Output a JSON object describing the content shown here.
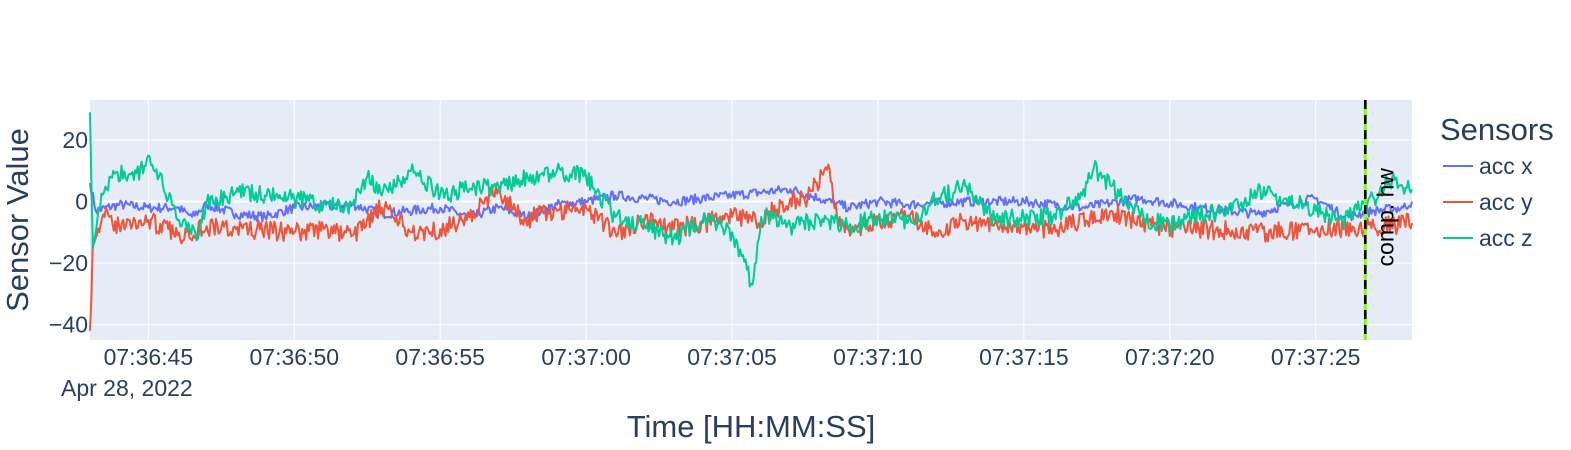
{
  "chart_data": {
    "type": "line",
    "xlabel": "Time [HH:MM:SS]",
    "ylabel": "Sensor Value",
    "x_date_label": "Apr 28, 2022",
    "x_start": "07:36:43",
    "x_end": "07:37:28.3",
    "x_ticks": [
      "07:36:45",
      "07:36:50",
      "07:36:55",
      "07:37:00",
      "07:37:05",
      "07:37:10",
      "07:37:15",
      "07:37:20",
      "07:37:25"
    ],
    "ylim": [
      -45,
      33
    ],
    "y_ticks": [
      20,
      0,
      -20,
      -40
    ],
    "y_tick_labels": [
      "20",
      "0",
      "−20",
      "−40"
    ],
    "grid": true,
    "legend": {
      "title": "Sensors",
      "placement": "right"
    },
    "series": [
      {
        "name": "acc x",
        "color": "#636efa",
        "points": [
          [
            "07:36:43.0",
            6
          ],
          [
            "07:36:43.2",
            -3
          ],
          [
            "07:36:44.0",
            -1
          ],
          [
            "07:36:45.0",
            -2
          ],
          [
            "07:36:46.0",
            -2
          ],
          [
            "07:36:46.5",
            -5
          ],
          [
            "07:36:47.0",
            -1
          ],
          [
            "07:36:48.0",
            -4
          ],
          [
            "07:36:49.0",
            -5
          ],
          [
            "07:36:50.0",
            -2
          ],
          [
            "07:36:52.0",
            -1
          ],
          [
            "07:36:53.0",
            -4
          ],
          [
            "07:36:55.0",
            -2
          ],
          [
            "07:36:56.0",
            -5
          ],
          [
            "07:36:57.0",
            -2
          ],
          [
            "07:36:58.0",
            -5
          ],
          [
            "07:36:59.0",
            -1
          ],
          [
            "07:37:00.0",
            0
          ],
          [
            "07:37:01.0",
            2
          ],
          [
            "07:37:03.0",
            0
          ],
          [
            "07:37:05.0",
            2
          ],
          [
            "07:37:07.0",
            4
          ],
          [
            "07:37:08.0",
            1
          ],
          [
            "07:37:09.0",
            -2
          ],
          [
            "07:37:10.0",
            0
          ],
          [
            "07:37:11.0",
            -1
          ],
          [
            "07:37:13.0",
            0
          ],
          [
            "07:37:15.0",
            0
          ],
          [
            "07:37:17.0",
            -2
          ],
          [
            "07:37:19.0",
            1
          ],
          [
            "07:37:21.0",
            -2
          ],
          [
            "07:37:23.0",
            -4
          ],
          [
            "07:37:24.0",
            -1
          ],
          [
            "07:37:25.0",
            1
          ],
          [
            "07:37:26.0",
            -5
          ],
          [
            "07:37:27.0",
            -3
          ],
          [
            "07:37:28.0",
            -2
          ],
          [
            "07:37:28.3",
            0
          ]
        ]
      },
      {
        "name": "acc y",
        "color": "#ef553b",
        "points": [
          [
            "07:36:43.0",
            -42
          ],
          [
            "07:36:43.1",
            -12
          ],
          [
            "07:36:43.5",
            -5
          ],
          [
            "07:36:44.0",
            -8
          ],
          [
            "07:36:45.0",
            -6
          ],
          [
            "07:36:46.0",
            -11
          ],
          [
            "07:36:47.0",
            -8
          ],
          [
            "07:36:48.0",
            -9
          ],
          [
            "07:36:50.0",
            -10
          ],
          [
            "07:36:51.0",
            -9
          ],
          [
            "07:36:52.0",
            -11
          ],
          [
            "07:36:53.0",
            -2
          ],
          [
            "07:36:54.0",
            -10
          ],
          [
            "07:36:55.0",
            -9
          ],
          [
            "07:36:56.0",
            -5
          ],
          [
            "07:36:57.0",
            4
          ],
          [
            "07:36:57.8",
            -6
          ],
          [
            "07:36:59.0",
            -3
          ],
          [
            "07:37:00.0",
            -2
          ],
          [
            "07:37:01.0",
            -10
          ],
          [
            "07:37:02.0",
            -6
          ],
          [
            "07:37:03.0",
            -9
          ],
          [
            "07:37:05.0",
            -5
          ],
          [
            "07:37:06.0",
            -6
          ],
          [
            "07:37:07.0",
            1
          ],
          [
            "07:37:07.5",
            0
          ],
          [
            "07:37:08.3",
            12
          ],
          [
            "07:37:08.6",
            -5
          ],
          [
            "07:37:09.0",
            -9
          ],
          [
            "07:37:11.0",
            -5
          ],
          [
            "07:37:12.0",
            -10
          ],
          [
            "07:37:13.0",
            -6
          ],
          [
            "07:37:15.0",
            -8
          ],
          [
            "07:37:16.0",
            -9
          ],
          [
            "07:37:18.0",
            -3
          ],
          [
            "07:37:19.0",
            -8
          ],
          [
            "07:37:21.0",
            -9
          ],
          [
            "07:37:23.0",
            -10
          ],
          [
            "07:37:25.0",
            -9
          ],
          [
            "07:37:27.0",
            -8
          ],
          [
            "07:37:28.3",
            -7
          ]
        ]
      },
      {
        "name": "acc z",
        "color": "#00cc96",
        "points": [
          [
            "07:36:43.0",
            29
          ],
          [
            "07:36:43.1",
            -15
          ],
          [
            "07:36:43.3",
            -2
          ],
          [
            "07:36:43.8",
            10
          ],
          [
            "07:36:44.5",
            7
          ],
          [
            "07:36:45.0",
            15
          ],
          [
            "07:36:45.5",
            5
          ],
          [
            "07:36:46.0",
            -6
          ],
          [
            "07:36:46.7",
            -12
          ],
          [
            "07:36:47.0",
            0
          ],
          [
            "07:36:48.0",
            3
          ],
          [
            "07:36:49.0",
            2
          ],
          [
            "07:36:50.0",
            1
          ],
          [
            "07:36:51.0",
            -1
          ],
          [
            "07:36:52.0",
            -1
          ],
          [
            "07:36:52.5",
            8
          ],
          [
            "07:36:53.0",
            2
          ],
          [
            "07:36:54.0",
            10
          ],
          [
            "07:36:55.0",
            2
          ],
          [
            "07:36:56.0",
            4
          ],
          [
            "07:36:57.0",
            5
          ],
          [
            "07:36:58.0",
            8
          ],
          [
            "07:36:59.0",
            10
          ],
          [
            "07:37:00.0",
            8
          ],
          [
            "07:37:01.0",
            -5
          ],
          [
            "07:37:02.0",
            -8
          ],
          [
            "07:37:03.0",
            -12
          ],
          [
            "07:37:04.0",
            -6
          ],
          [
            "07:37:05.0",
            -10
          ],
          [
            "07:37:05.7",
            -27
          ],
          [
            "07:37:06.0",
            -5
          ],
          [
            "07:37:07.0",
            -8
          ],
          [
            "07:37:08.0",
            -6
          ],
          [
            "07:37:09.0",
            -8
          ],
          [
            "07:37:10.0",
            -5
          ],
          [
            "07:37:11.0",
            -7
          ],
          [
            "07:37:12.0",
            1
          ],
          [
            "07:37:13.0",
            5
          ],
          [
            "07:37:14.0",
            -6
          ],
          [
            "07:37:15.0",
            -5
          ],
          [
            "07:37:16.0",
            -5
          ],
          [
            "07:37:17.0",
            2
          ],
          [
            "07:37:17.4",
            11
          ],
          [
            "07:37:18.0",
            5
          ],
          [
            "07:37:19.0",
            -5
          ],
          [
            "07:37:20.0",
            -8
          ],
          [
            "07:37:21.0",
            -4
          ],
          [
            "07:37:22.0",
            -4
          ],
          [
            "07:37:23.0",
            3
          ],
          [
            "07:37:24.0",
            1
          ],
          [
            "07:37:25.0",
            -3
          ],
          [
            "07:37:26.0",
            -6
          ],
          [
            "07:37:27.0",
            1
          ],
          [
            "07:37:27.5",
            7
          ],
          [
            "07:37:28.3",
            4
          ]
        ]
      }
    ],
    "annotations": [
      {
        "label": "comp. hw",
        "x": "07:37:26.7",
        "line_colors": [
          "#7fff00",
          "#000000"
        ],
        "line_style": "dashed"
      }
    ]
  }
}
